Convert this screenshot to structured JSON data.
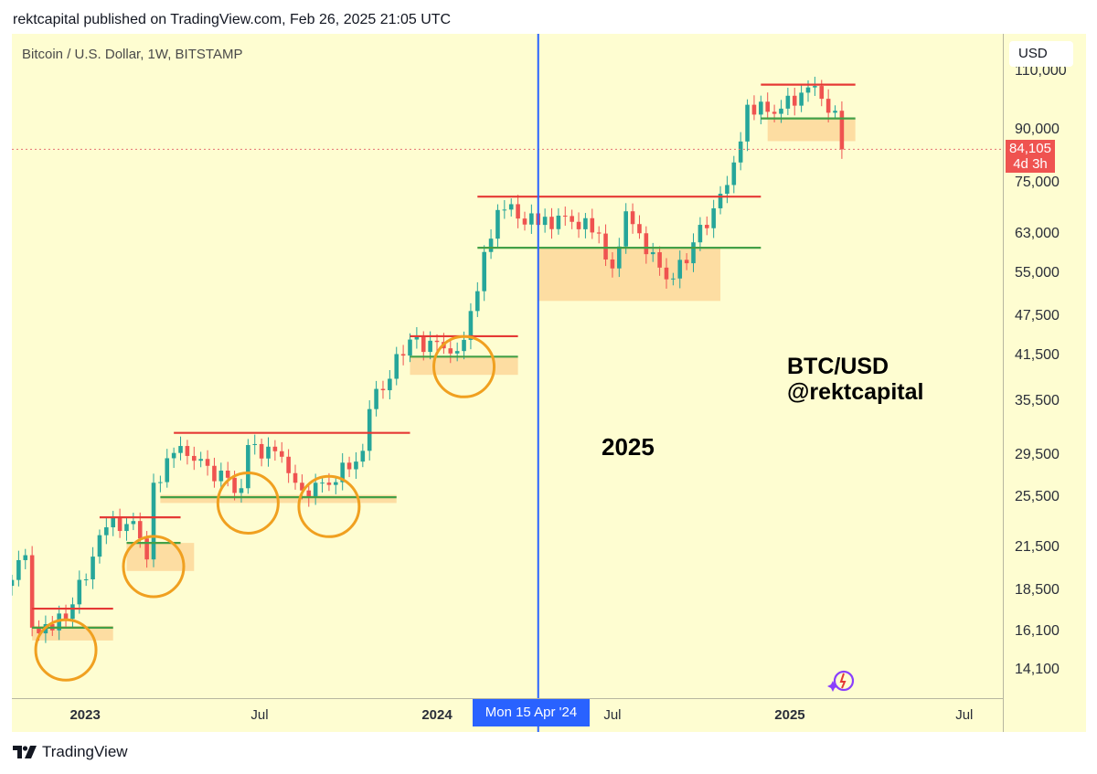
{
  "header": {
    "publish_line": "rektcapital published on TradingView.com, Feb 26, 2025 21:05 UTC"
  },
  "chart": {
    "symbol_title": "Bitcoin / U.S. Dollar, 1W, BITSTAMP",
    "year_label": "2025",
    "watermark_line1": "BTC/USD",
    "watermark_line2": "@rektcapital"
  },
  "price_axis": {
    "currency": "USD",
    "current_price": "84,105",
    "countdown": "4d 3h"
  },
  "time_axis": {
    "crosshair_label": "Mon 15 Apr '24"
  },
  "footer": {
    "logo_text": "TradingView"
  },
  "colors": {
    "background": "#fefdd1",
    "up": "#26a69a",
    "down": "#ef5350",
    "resistance": "#e53935",
    "support": "#43a047",
    "zone": "#fdd79a",
    "circle": "#f0a020",
    "crosshair": "#2962ff"
  },
  "icons": [
    "tradingview-logo-icon",
    "sparkle-icon"
  ],
  "chart_data": {
    "type": "candlestick",
    "title": "Bitcoin / U.S. Dollar, 1W, BITSTAMP",
    "y_scale": "log",
    "ylim": [
      12800,
      125000
    ],
    "x_range": [
      "2022-10-17",
      "2025-08-10"
    ],
    "y_ticks": [
      110000,
      90000,
      75000,
      63000,
      55000,
      47500,
      41500,
      35500,
      29500,
      25500,
      21500,
      18500,
      16100,
      14100
    ],
    "x_ticks": [
      {
        "label": "2023",
        "date": "2023-01-01",
        "bold": true
      },
      {
        "label": "Jul",
        "date": "2023-07-01",
        "bold": false
      },
      {
        "label": "2024",
        "date": "2024-01-01",
        "bold": true
      },
      {
        "label": "Jul",
        "date": "2024-07-01",
        "bold": false
      },
      {
        "label": "2025",
        "date": "2025-01-01",
        "bold": true
      },
      {
        "label": "Jul",
        "date": "2025-07-01",
        "bold": false
      }
    ],
    "crosshair_date": "2024-04-15",
    "current_price": 84105,
    "closes": [
      {
        "d": "2022-10-17",
        "c": 19200
      },
      {
        "d": "2022-10-31",
        "c": 20900
      },
      {
        "d": "2022-11-07",
        "c": 16300
      },
      {
        "d": "2022-11-21",
        "c": 16500
      },
      {
        "d": "2022-12-12",
        "c": 16800
      },
      {
        "d": "2023-01-09",
        "c": 20800
      },
      {
        "d": "2023-01-23",
        "c": 23000
      },
      {
        "d": "2023-02-20",
        "c": 23500
      },
      {
        "d": "2023-03-06",
        "c": 20600
      },
      {
        "d": "2023-03-13",
        "c": 26800
      },
      {
        "d": "2023-04-10",
        "c": 30400
      },
      {
        "d": "2023-04-24",
        "c": 28900
      },
      {
        "d": "2023-06-12",
        "c": 26300
      },
      {
        "d": "2023-06-19",
        "c": 30500
      },
      {
        "d": "2023-07-24",
        "c": 29300
      },
      {
        "d": "2023-08-14",
        "c": 26100
      },
      {
        "d": "2023-09-11",
        "c": 26600
      },
      {
        "d": "2023-10-16",
        "c": 29900
      },
      {
        "d": "2023-10-23",
        "c": 34500
      },
      {
        "d": "2023-12-04",
        "c": 43800
      },
      {
        "d": "2024-01-08",
        "c": 42500
      },
      {
        "d": "2024-01-22",
        "c": 42100
      },
      {
        "d": "2024-02-05",
        "c": 48300
      },
      {
        "d": "2024-03-04",
        "c": 68300
      },
      {
        "d": "2024-03-11",
        "c": 68400
      },
      {
        "d": "2024-04-15",
        "c": 64900
      },
      {
        "d": "2024-05-13",
        "c": 66900
      },
      {
        "d": "2024-06-17",
        "c": 63000
      },
      {
        "d": "2024-07-01",
        "c": 55900
      },
      {
        "d": "2024-07-15",
        "c": 68000
      },
      {
        "d": "2024-08-05",
        "c": 58700
      },
      {
        "d": "2024-09-02",
        "c": 54000
      },
      {
        "d": "2024-10-14",
        "c": 68700
      },
      {
        "d": "2024-11-04",
        "c": 80400
      },
      {
        "d": "2024-11-18",
        "c": 98000
      },
      {
        "d": "2024-12-16",
        "c": 95000
      },
      {
        "d": "2025-01-20",
        "c": 104000
      },
      {
        "d": "2025-02-17",
        "c": 96000
      },
      {
        "d": "2025-02-24",
        "c": 84105
      }
    ],
    "horizontal_levels": [
      {
        "kind": "resistance",
        "price": 17400,
        "from": "2022-11-07",
        "to": "2023-01-30"
      },
      {
        "kind": "support",
        "price": 16300,
        "from": "2022-11-07",
        "to": "2023-01-30"
      },
      {
        "kind": "resistance",
        "price": 23800,
        "from": "2023-01-16",
        "to": "2023-04-10"
      },
      {
        "kind": "support",
        "price": 21800,
        "from": "2023-02-13",
        "to": "2023-04-10"
      },
      {
        "kind": "resistance",
        "price": 31800,
        "from": "2023-04-03",
        "to": "2023-12-04"
      },
      {
        "kind": "support",
        "price": 25500,
        "from": "2023-03-20",
        "to": "2023-11-20"
      },
      {
        "kind": "resistance",
        "price": 44300,
        "from": "2023-12-04",
        "to": "2024-03-25"
      },
      {
        "kind": "support",
        "price": 41300,
        "from": "2023-12-04",
        "to": "2024-03-25"
      },
      {
        "kind": "resistance",
        "price": 71500,
        "from": "2024-02-12",
        "to": "2024-12-02"
      },
      {
        "kind": "support",
        "price": 60000,
        "from": "2024-02-12",
        "to": "2024-12-02"
      },
      {
        "kind": "resistance",
        "price": 105000,
        "from": "2024-12-02",
        "to": "2025-03-10"
      },
      {
        "kind": "support",
        "price": 93500,
        "from": "2024-12-02",
        "to": "2025-03-10"
      }
    ],
    "zones": [
      {
        "from": "2022-11-07",
        "to": "2023-01-30",
        "low": 15600,
        "high": 16400
      },
      {
        "from": "2023-02-13",
        "to": "2023-04-24",
        "low": 19800,
        "high": 21800
      },
      {
        "from": "2023-03-20",
        "to": "2023-11-20",
        "low": 25000,
        "high": 25700
      },
      {
        "from": "2023-12-04",
        "to": "2024-03-25",
        "low": 38800,
        "high": 41300
      },
      {
        "from": "2024-04-15",
        "to": "2024-10-21",
        "low": 50000,
        "high": 60000
      },
      {
        "from": "2024-12-09",
        "to": "2025-03-10",
        "low": 86500,
        "high": 93500
      }
    ],
    "circles": [
      {
        "date": "2022-12-12",
        "price": 15100
      },
      {
        "date": "2023-03-13",
        "price": 20100
      },
      {
        "date": "2023-06-19",
        "price": 25000
      },
      {
        "date": "2023-09-11",
        "price": 24700
      },
      {
        "date": "2024-01-29",
        "price": 39900
      }
    ]
  }
}
